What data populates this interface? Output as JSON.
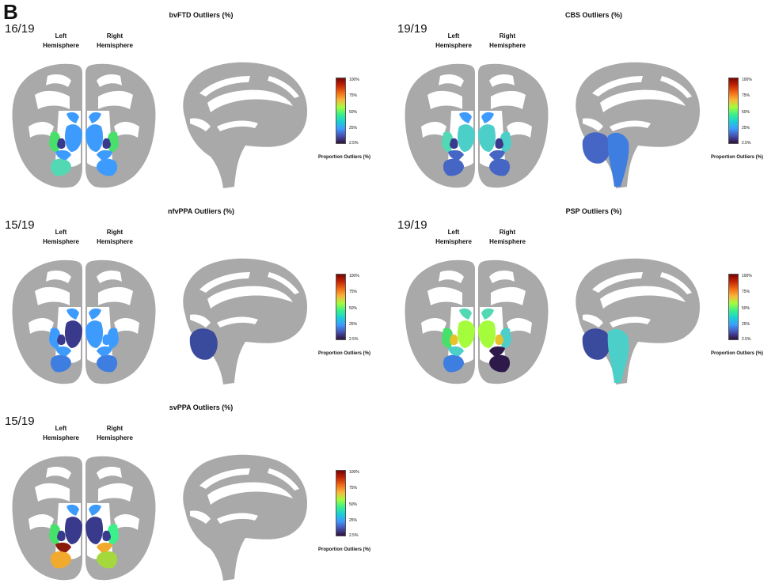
{
  "panel_letter": "B",
  "hemisphere_labels": {
    "left": "Left\nHemisphere",
    "right": "Right\nHemisphere"
  },
  "colorbar": {
    "ticks": [
      "100%",
      "75%",
      "50%",
      "25%",
      "2.5%"
    ],
    "label": "Proportion Outliers (%)"
  },
  "panels": [
    {
      "title": "bvFTD Outliers (%)",
      "count": "16/19",
      "regions": {
        "l_caudate": "#3e9bfe",
        "l_put": "#3e9bfe",
        "l_ins": "#47e06a",
        "l_thal": "#3a3a8c",
        "l_temp": "#52d9b3",
        "l_hip": "#3e9bfe",
        "r_caudate": "#3e9bfe",
        "r_put": "#3e9bfe",
        "r_ins": "#47e06a",
        "r_thal": "#3a3a8c",
        "r_temp": "#3e9bfe",
        "r_hip": "#3e9bfe",
        "sag_cb": "none",
        "sag_stem": "none"
      }
    },
    {
      "title": "CBS Outliers (%)",
      "count": "19/19",
      "regions": {
        "l_caudate": "#3e9bfe",
        "l_put": "#4ccfc9",
        "l_ins": "#52d9b3",
        "l_thal": "#3a3a8c",
        "l_temp": "#4566c4",
        "l_hip": "#4566c4",
        "r_caudate": "#3e9bfe",
        "r_put": "#4ccfc9",
        "r_ins": "#4ccfc9",
        "r_thal": "#3a3a8c",
        "r_temp": "#4566c4",
        "r_hip": "#4566c4",
        "sag_cb": "#4566c4",
        "sag_stem": "#3e7ee0"
      }
    },
    {
      "title": "nfvPPA Outliers (%)",
      "count": "15/19",
      "regions": {
        "l_caudate": "#3e9bfe",
        "l_put": "#3a3a8c",
        "l_ins": "#3e9bfe",
        "l_thal": "#3a3a8c",
        "l_temp": "#3e7ee0",
        "l_hip": "#3e9bfe",
        "r_caudate": "#3e9bfe",
        "r_put": "#3e9bfe",
        "r_ins": "#3e9bfe",
        "r_thal": "#3e9bfe",
        "r_temp": "#3e7ee0",
        "r_hip": "#3e9bfe",
        "sag_cb": "#3a4a9c",
        "sag_stem": "none"
      }
    },
    {
      "title": "PSP Outliers (%)",
      "count": "19/19",
      "regions": {
        "l_caudate": "#52d9b3",
        "l_put": "#a4fc3c",
        "l_ins": "#47e06a",
        "l_thal": "#e8c22a",
        "l_temp": "#3e7ee0",
        "l_hip": "#4ccfc9",
        "r_caudate": "#52d9b3",
        "r_put": "#a4fc3c",
        "r_ins": "#4ccfc9",
        "r_thal": "#e8c22a",
        "r_temp": "#2d1a4a",
        "r_hip": "#2d1a4a",
        "sag_cb": "#3a4a9c",
        "sag_stem": "#4ccfc9"
      }
    },
    {
      "title": "svPPA Outliers (%)",
      "count": "15/19",
      "regions": {
        "l_caudate": "#3e9bfe",
        "l_put": "#3a3a8c",
        "l_ins": "#47e06a",
        "l_thal": "#3a3a8c",
        "l_temp": "#f2aa2e",
        "l_hip": "#8a1a0a",
        "r_caudate": "#3e9bfe",
        "r_put": "#3a3a8c",
        "r_ins": "#3bf18a",
        "r_thal": "#3a3a8c",
        "r_temp": "#a4d83c",
        "r_hip": "#f2aa2e",
        "sag_cb": "none",
        "sag_stem": "none"
      }
    }
  ]
}
